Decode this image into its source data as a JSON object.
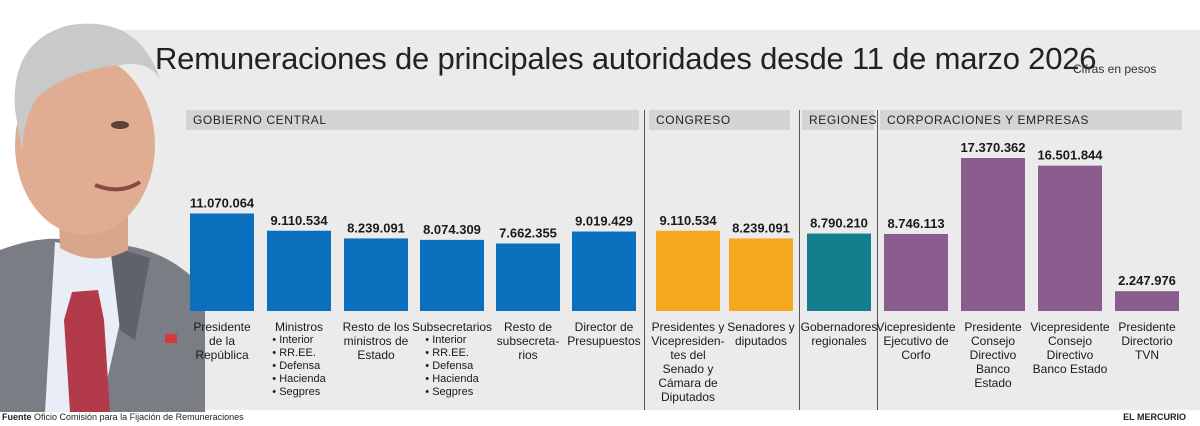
{
  "title": "Remuneraciones de principales autoridades desde 11 de marzo 2026",
  "unit_note": "Cifras en pesos",
  "sections": [
    {
      "label": "GOBIERNO CENTRAL"
    },
    {
      "label": "CONGRESO"
    },
    {
      "label": "REGIONES"
    },
    {
      "label": "CORPORACIONES Y EMPRESAS"
    }
  ],
  "footer": {
    "source_label": "Fuente",
    "source_text": "Oficio Comisión para la Fijación de Remuneraciones",
    "brand": "EL MERCURIO"
  },
  "colors": {
    "gobierno_central": "#0a70bd",
    "congreso": "#f6a91f",
    "regiones": "#137f8e",
    "corporaciones": "#8b5d8e"
  },
  "chart_data": {
    "type": "bar",
    "categories": [
      "Presidente de la República",
      "Ministros",
      "Resto de los ministros de Estado",
      "Subsecretarios",
      "Resto de subsecretarios",
      "Director de Presupuestos",
      "Presidentes y Vicepresidentes del Senado y Cámara de Diputados",
      "Senadores y diputados",
      "Gobernadores regionales",
      "Vicepresidente Ejecutivo de Corfo",
      "Presidente Consejo Directivo Banco Estado",
      "Vicepresidente Consejo Directivo Banco Estado",
      "Presidente Directorio TVN"
    ],
    "values": [
      11070064,
      9110534,
      8239091,
      8074309,
      7662355,
      9019429,
      9110534,
      8239091,
      8790210,
      8746113,
      17370362,
      16501844,
      2247976
    ],
    "value_labels": [
      "11.070.064",
      "9.110.534",
      "8.239.091",
      "8.074.309",
      "7.662.355",
      "9.019.429",
      "9.110.534",
      "8.239.091",
      "8.790.210",
      "8.746.113",
      "17.370.362",
      "16.501.844",
      "2.247.976"
    ],
    "groups": [
      "gobierno_central",
      "gobierno_central",
      "gobierno_central",
      "gobierno_central",
      "gobierno_central",
      "gobierno_central",
      "congreso",
      "congreso",
      "regiones",
      "corporaciones",
      "corporaciones",
      "corporaciones",
      "corporaciones"
    ],
    "label_lines": [
      [
        "Presidente",
        "de la",
        "República"
      ],
      [
        "Ministros"
      ],
      [
        "Resto de los",
        "ministros de",
        "Estado"
      ],
      [
        "Subsecretarios"
      ],
      [
        "Resto de",
        "subsecreta-",
        "rios"
      ],
      [
        "Director de",
        "Presupuestos"
      ],
      [
        "Presidentes y",
        "Vicepresiden-",
        "tes del",
        "Senado y",
        "Cámara de",
        "Diputados"
      ],
      [
        "Senadores y",
        "diputados"
      ],
      [
        "Gobernadores",
        "regionales"
      ],
      [
        "Vicepresidente",
        "Ejecutivo de",
        "Corfo"
      ],
      [
        "Presidente",
        "Consejo",
        "Directivo",
        "Banco",
        "Estado"
      ],
      [
        "Vicepresidente",
        "Consejo",
        "Directivo",
        "Banco Estado"
      ],
      [
        "Presidente",
        "Directorio",
        "TVN"
      ]
    ],
    "sub_items": {
      "1": [
        "Interior",
        "RR.EE.",
        "Defensa",
        "Hacienda",
        "Segpres"
      ],
      "3": [
        "Interior",
        "RR.EE.",
        "Defensa",
        "Hacienda",
        "Segpres"
      ]
    },
    "title": "Remuneraciones de principales autoridades desde 11 de marzo 2026",
    "ylim": [
      0,
      17370362
    ],
    "grid": false,
    "legend": "none"
  }
}
